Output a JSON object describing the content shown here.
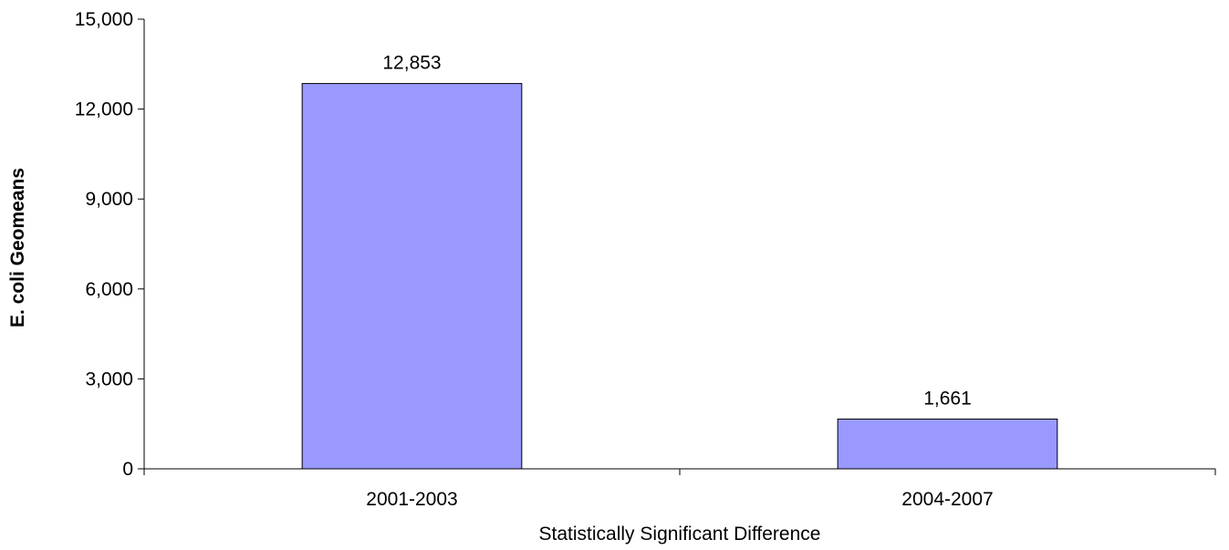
{
  "chart_data": {
    "type": "bar",
    "title": "",
    "xlabel": "Statistically Significant Difference",
    "ylabel": "E. coli Geomeans",
    "categories": [
      "2001-2003",
      "2004-2007"
    ],
    "values": [
      12853,
      1661
    ],
    "data_labels": [
      "12,853",
      "1,661"
    ],
    "ylim": [
      0,
      15000
    ],
    "yticks": [
      0,
      3000,
      6000,
      9000,
      12000,
      15000
    ],
    "ytick_labels": [
      "0",
      "3,000",
      "6,000",
      "9,000",
      "12,000",
      "15,000"
    ],
    "grid": false,
    "legend": "none",
    "colors": {
      "bar_fill": "#9999ff",
      "bar_stroke": "#000000",
      "axis": "#000000"
    }
  }
}
